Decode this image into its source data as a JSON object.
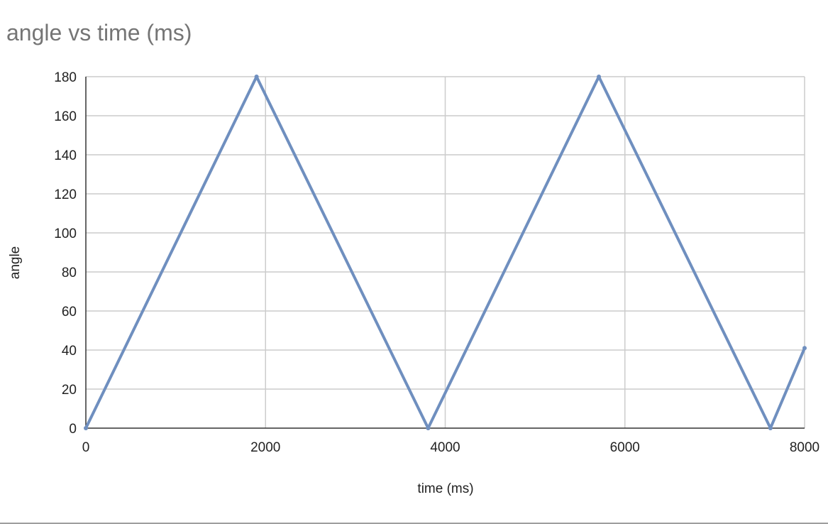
{
  "chart_data": {
    "type": "line",
    "title": "angle vs time (ms)",
    "xlabel": "time (ms)",
    "ylabel": "angle",
    "xlim": [
      0,
      8000
    ],
    "ylim": [
      0,
      180
    ],
    "x_ticks": [
      0,
      2000,
      4000,
      6000,
      8000
    ],
    "y_ticks": [
      0,
      20,
      40,
      60,
      80,
      100,
      120,
      140,
      160,
      180
    ],
    "grid": true,
    "legend": "none",
    "series": [
      {
        "color": "#6f8fbf",
        "x": [
          0,
          1900,
          3810,
          5710,
          7620,
          8000
        ],
        "y": [
          0,
          180,
          0,
          180,
          0,
          41
        ]
      }
    ]
  }
}
